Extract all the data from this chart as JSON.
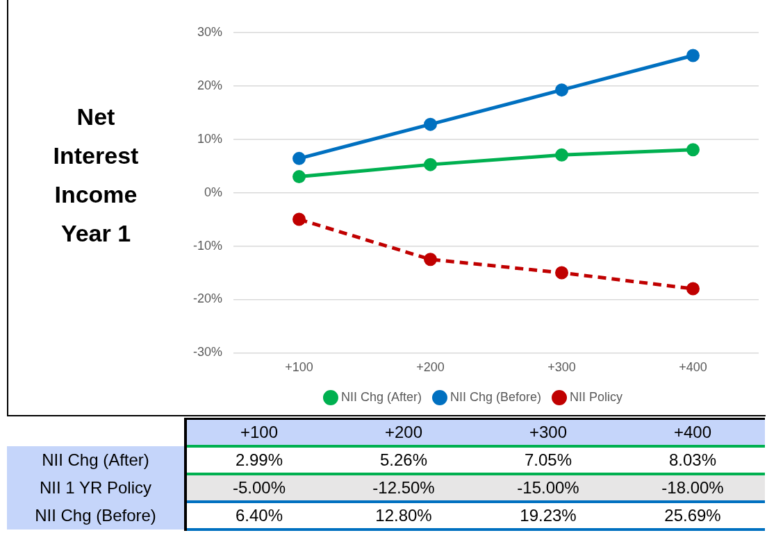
{
  "chart_data": {
    "type": "line",
    "title": "Net Interest Income Year 1",
    "categories": [
      "+100",
      "+200",
      "+300",
      "+400"
    ],
    "series": [
      {
        "name": "NII Chg (After)",
        "color": "#00b050",
        "values": [
          2.99,
          5.26,
          7.05,
          8.03
        ],
        "value_labels": [
          "2.99%",
          "5.26%",
          "7.05%",
          "8.03%"
        ],
        "line_style": "solid"
      },
      {
        "name": "NII Policy",
        "color": "#c00000",
        "values": [
          -5,
          -12.5,
          -15,
          -18
        ],
        "value_labels": [
          "-5.00%",
          "-12.50%",
          "-15.00%",
          "-18.00%"
        ],
        "line_style": "dashed"
      },
      {
        "name": "NII Chg (Before)",
        "color": "#0070c0",
        "values": [
          6.4,
          12.8,
          19.23,
          25.69
        ],
        "value_labels": [
          "6.40%",
          "12.80%",
          "19.23%",
          "25.69%"
        ],
        "line_style": "solid"
      }
    ],
    "annotations": [
      "NII 1 YR Policy"
    ],
    "ylim": [
      -30,
      30
    ],
    "yticks": [
      {
        "value": -30,
        "label": "-30%"
      },
      {
        "value": -20,
        "label": "-20%"
      },
      {
        "value": -10,
        "label": "-10%"
      },
      {
        "value": 0,
        "label": "0%"
      },
      {
        "value": 10,
        "label": "10%"
      },
      {
        "value": 20,
        "label": "20%"
      },
      {
        "value": 30,
        "label": "30%"
      }
    ],
    "grid": "y",
    "legend": "bottom",
    "marker": "circle"
  }
}
